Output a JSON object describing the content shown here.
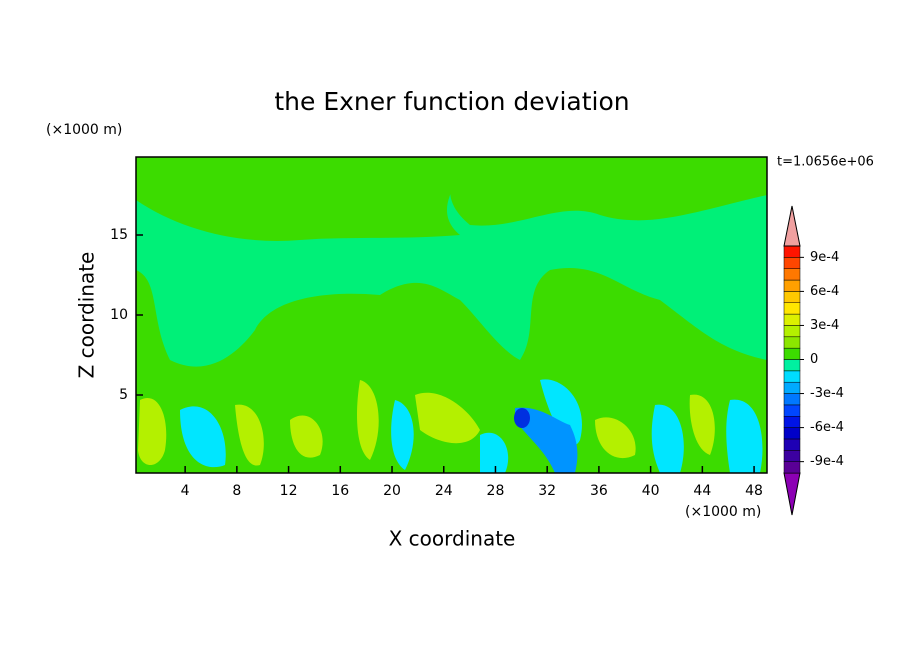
{
  "chart_data": {
    "type": "contour",
    "title": "the Exner function deviation",
    "x_label": "X coordinate",
    "y_label": "Z coordinate",
    "x_unit_label": "(×1000 m)",
    "y_unit_label": "(×1000 m)",
    "time_label": "t=1.0656e+06",
    "xlim": [
      0.2,
      49
    ],
    "xticks": [
      4,
      8,
      12,
      16,
      20,
      24,
      28,
      32,
      36,
      40,
      44,
      48
    ],
    "ylim": [
      0.125,
      19.875
    ],
    "yticks": [
      5,
      10,
      15
    ],
    "grid": false,
    "colorbar": {
      "lim": [
        -0.001,
        0.001
      ],
      "ticks": [
        {
          "value": -0.0009,
          "label": "-9e-4"
        },
        {
          "value": -0.0006,
          "label": "-6e-4"
        },
        {
          "value": -0.0003,
          "label": "-3e-4"
        },
        0,
        {
          "value": 0.0003,
          "label": "3e-4"
        },
        {
          "value": 0.0006,
          "label": "6e-4"
        },
        {
          "value": 0.0009,
          "label": "9e-4"
        }
      ],
      "colors": [
        "#8c00b4",
        "#5a0096",
        "#3c00a0",
        "#1e00b4",
        "#0000c8",
        "#0014e6",
        "#0046ff",
        "#0078ff",
        "#00aaff",
        "#00dcff",
        "#00f0a0",
        "#3cdc00",
        "#8ce600",
        "#b4f000",
        "#dcf000",
        "#ffe600",
        "#ffc800",
        "#ffa000",
        "#ff7800",
        "#ff4600",
        "#ff1400",
        "#f0a0a0"
      ]
    }
  }
}
